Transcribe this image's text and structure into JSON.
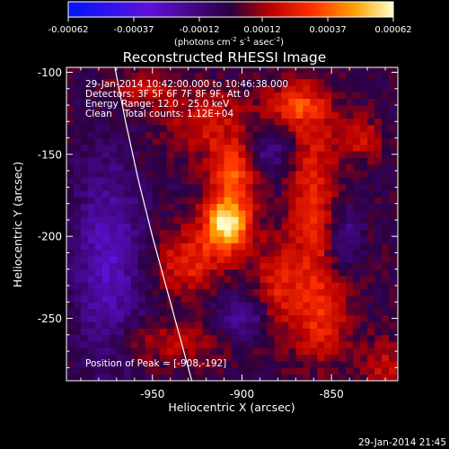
{
  "chart_data": {
    "type": "heatmap",
    "title": "Reconstructed RHESSI Image",
    "xlabel": "Heliocentric X (arcsec)",
    "ylabel": "Heliocentric Y (arcsec)",
    "xlim": [
      -998,
      -813
    ],
    "ylim": [
      -288,
      -97
    ],
    "xticks": [
      -950,
      -900,
      -850
    ],
    "yticks": [
      -100,
      -150,
      -200,
      -250
    ],
    "info_lines": [
      "29-Jan-2014 10:42:00.000 to 10:46:38.000",
      "Detectors: 3F 5F 6F 7F 8F 9F, Att 0",
      "Energy Range: 12.0 - 25.0 keV",
      "Clean    Total counts: 1.12E+04"
    ],
    "peak_label": "Position of Peak = [-908,-192]",
    "peak_position": [
      -908,
      -192
    ],
    "colorbar": {
      "range": [
        -0.00062,
        0.00062
      ],
      "tick_labels": [
        "-0.00062",
        "-0.00037",
        "-0.00012",
        "0.00012",
        "0.00037",
        "0.00062"
      ],
      "units_label": "(photons cm",
      "units_sup1": "-2",
      "units_s": " s",
      "units_sup2": "-1",
      "units_asec": " asec",
      "units_sup3": "-2",
      "units_close": ")"
    },
    "limb": [
      [
        -971,
        -97
      ],
      [
        -965,
        -130
      ],
      [
        -958,
        -165
      ],
      [
        -950,
        -200
      ],
      [
        -940,
        -240
      ],
      [
        -928,
        -288
      ]
    ],
    "sources": [
      {
        "x": -908,
        "y": -192,
        "value": 0.00062,
        "sx": 9,
        "sy": 12
      },
      {
        "x": -905,
        "y": -160,
        "value": 0.00033,
        "sx": 9,
        "sy": 12
      },
      {
        "x": -930,
        "y": -215,
        "value": 0.00025,
        "sx": 13,
        "sy": 14
      },
      {
        "x": -880,
        "y": -230,
        "value": 0.00024,
        "sx": 9,
        "sy": 20
      },
      {
        "x": -860,
        "y": -180,
        "value": 0.00026,
        "sx": 9,
        "sy": 42
      },
      {
        "x": -855,
        "y": -250,
        "value": 0.00022,
        "sx": 11,
        "sy": 18
      },
      {
        "x": -870,
        "y": -120,
        "value": 0.00028,
        "sx": 12,
        "sy": 9
      },
      {
        "x": -835,
        "y": -140,
        "value": 0.0002,
        "sx": 9,
        "sy": 9
      },
      {
        "x": -920,
        "y": -130,
        "value": 0.00021,
        "sx": 16,
        "sy": 14
      },
      {
        "x": -955,
        "y": -110,
        "value": 0.00018,
        "sx": 12,
        "sy": 8
      },
      {
        "x": -940,
        "y": -265,
        "value": 0.00016,
        "sx": 20,
        "sy": 9
      },
      {
        "x": -820,
        "y": -280,
        "value": 0.00018,
        "sx": 9,
        "sy": 12
      },
      {
        "x": -975,
        "y": -215,
        "value": -0.00026,
        "sx": 13,
        "sy": 42
      },
      {
        "x": -898,
        "y": -248,
        "value": -0.0002,
        "sx": 10,
        "sy": 10
      },
      {
        "x": -885,
        "y": -148,
        "value": -0.00016,
        "sx": 8,
        "sy": 9
      },
      {
        "x": -843,
        "y": -200,
        "value": -0.00016,
        "sx": 7,
        "sy": 14
      }
    ]
  },
  "footer": {
    "date_stamp": "29-Jan-2014 21:45"
  }
}
